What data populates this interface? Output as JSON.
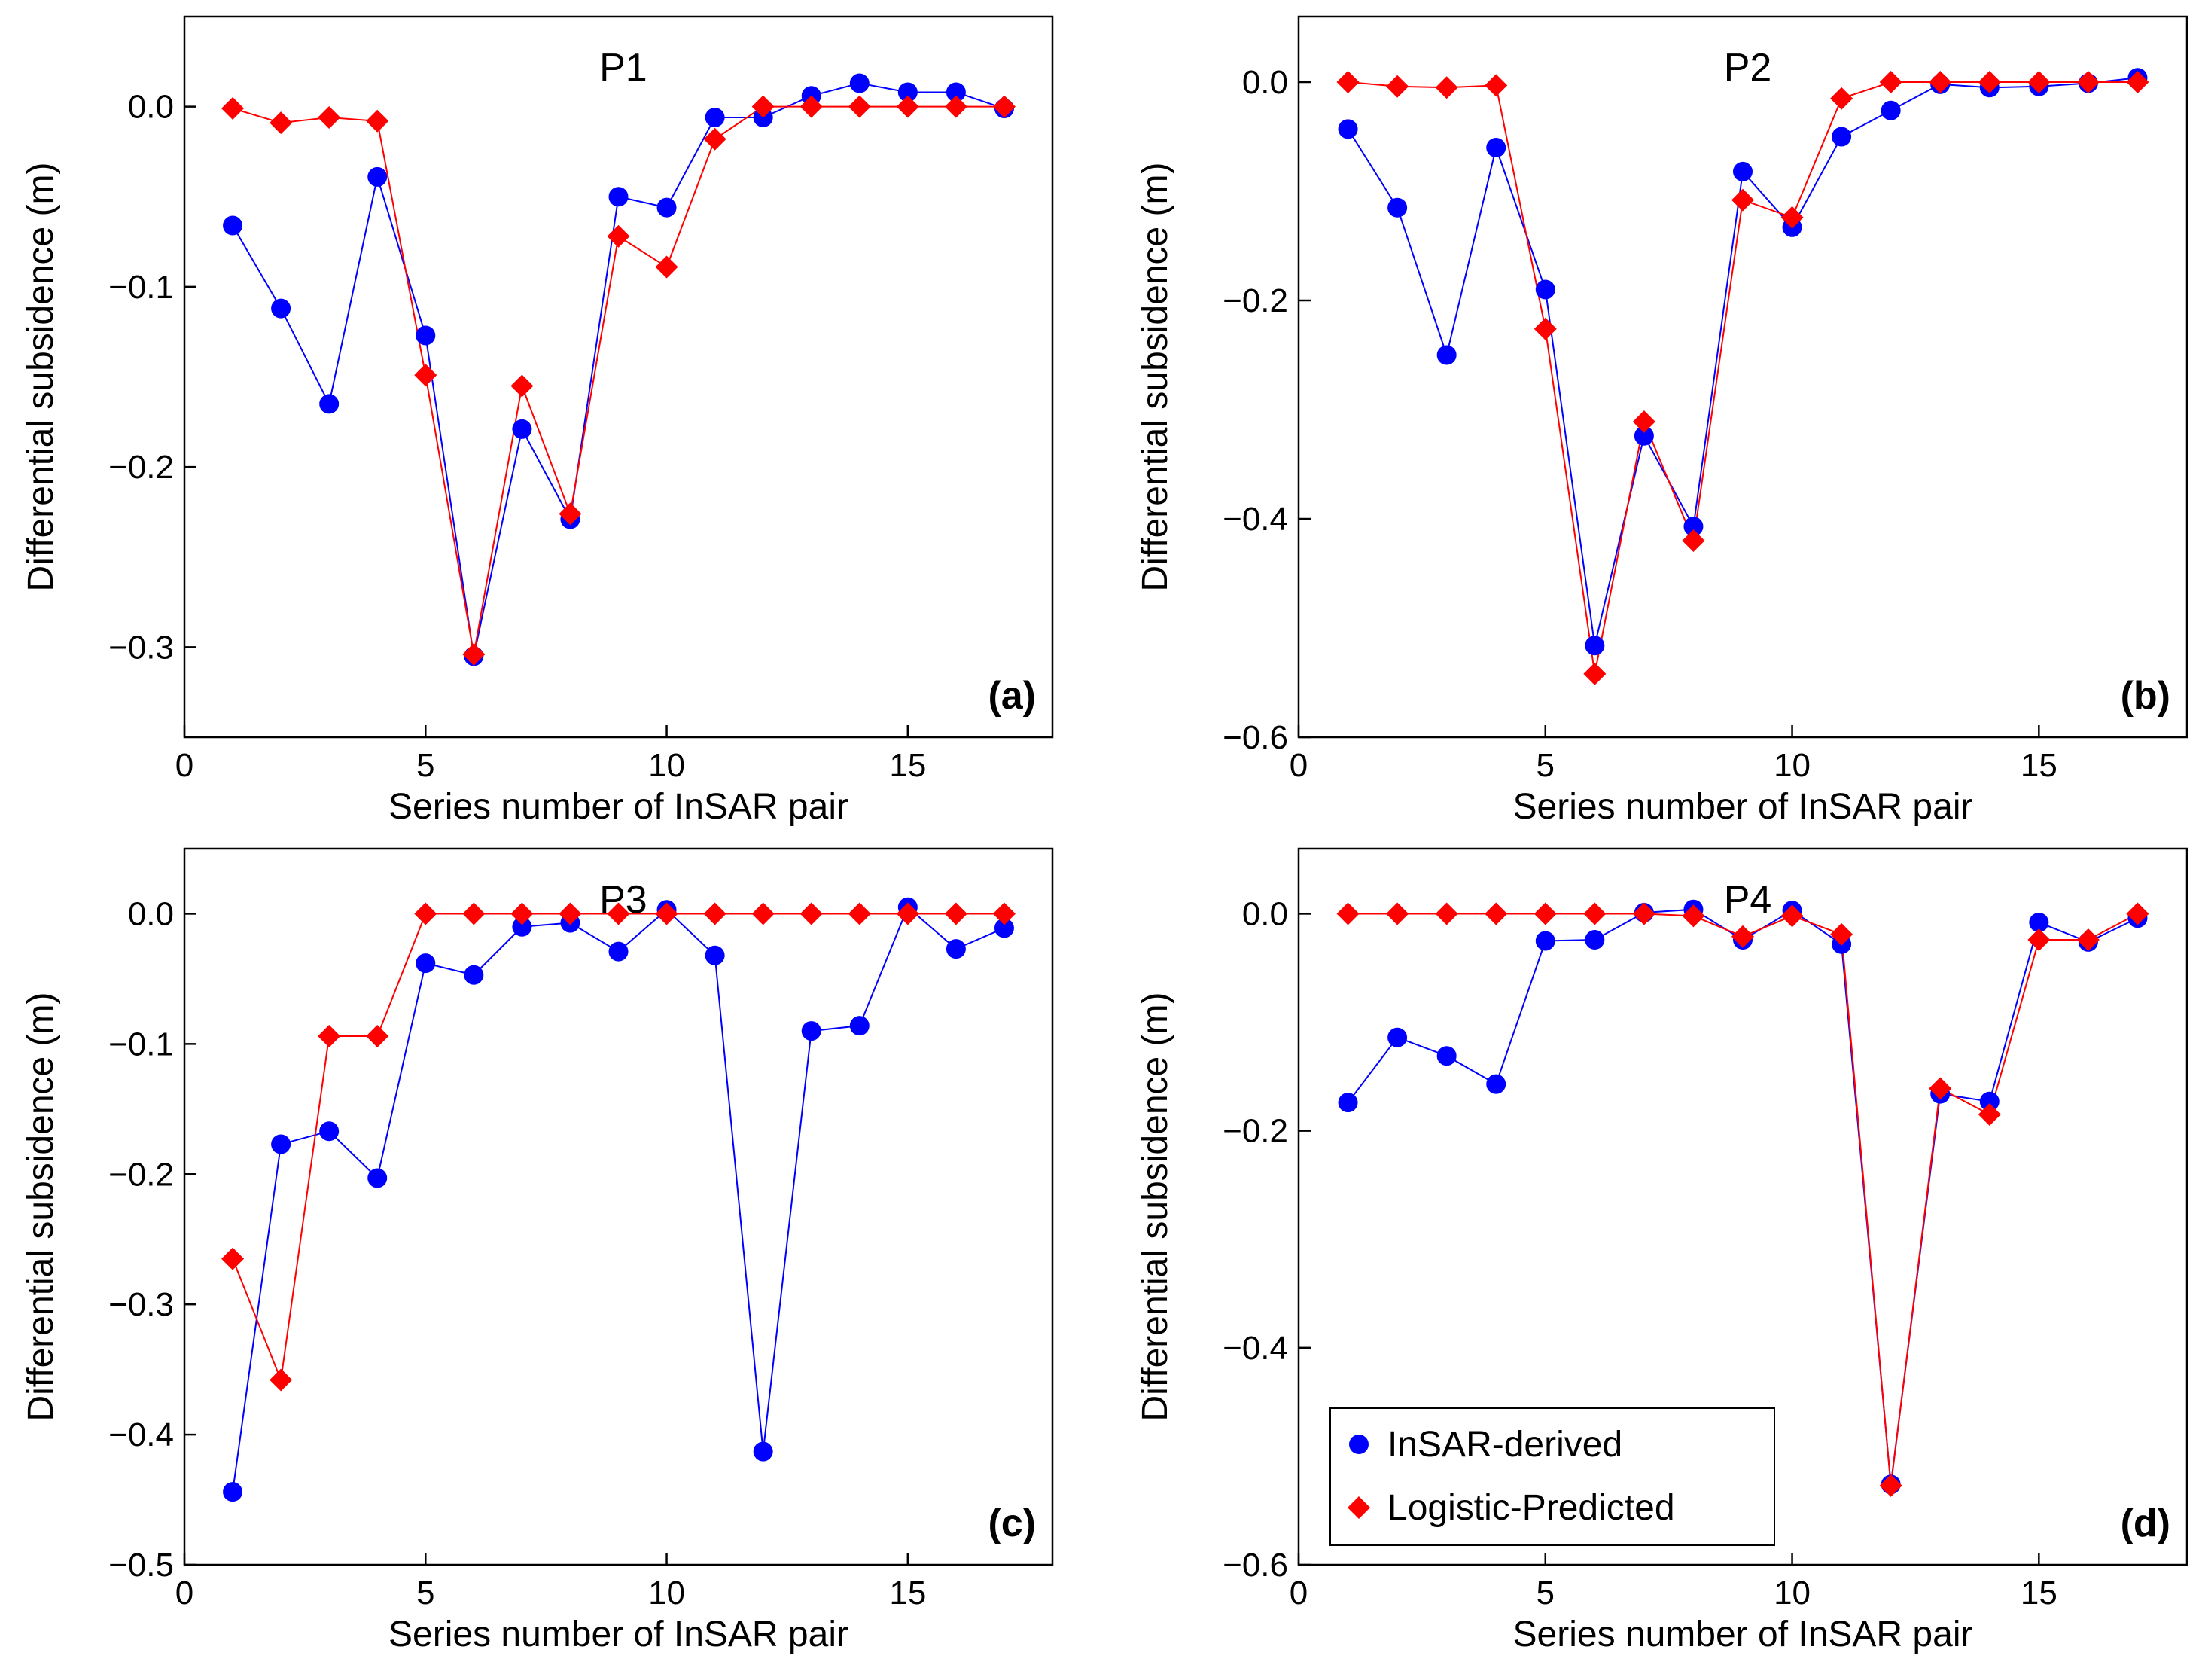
{
  "chart_data": [
    {
      "type": "line",
      "title": "P1",
      "panel_label": "(a)",
      "xlabel": "Series number of InSAR pair",
      "ylabel": "Differential subsidence (m)",
      "xlim": [
        0,
        18
      ],
      "ylim": [
        -0.35,
        0.05
      ],
      "xticks": [
        0,
        5,
        10,
        15
      ],
      "yticks": [
        -0.3,
        -0.2,
        -0.1,
        0.0
      ],
      "x": [
        1,
        2,
        3,
        4,
        5,
        6,
        7,
        8,
        9,
        10,
        11,
        12,
        13,
        14,
        15,
        16,
        17
      ],
      "series": [
        {
          "name": "InSAR-derived",
          "color": "#0000ff",
          "marker": "circle",
          "values": [
            -0.066,
            -0.112,
            -0.165,
            -0.039,
            -0.127,
            -0.305,
            -0.179,
            -0.229,
            -0.05,
            -0.056,
            -0.006,
            -0.006,
            0.006,
            0.013,
            0.008,
            0.008,
            -0.001
          ]
        },
        {
          "name": "Logistic-Predicted",
          "color": "#ff0000",
          "marker": "diamond",
          "values": [
            -0.001,
            -0.009,
            -0.006,
            -0.008,
            -0.149,
            -0.304,
            -0.155,
            -0.226,
            -0.072,
            -0.089,
            -0.018,
            0.0,
            0.0,
            0.0,
            0.0,
            0.0,
            0.0
          ]
        }
      ]
    },
    {
      "type": "line",
      "title": "P2",
      "panel_label": "(b)",
      "xlabel": "Series number of InSAR pair",
      "ylabel": "Differential subsidence (m)",
      "xlim": [
        0,
        18
      ],
      "ylim": [
        -0.6,
        0.06
      ],
      "xticks": [
        0,
        5,
        10,
        15
      ],
      "yticks": [
        -0.6,
        -0.4,
        -0.2,
        0.0
      ],
      "x": [
        1,
        2,
        3,
        4,
        5,
        6,
        7,
        8,
        9,
        10,
        11,
        12,
        13,
        14,
        15,
        16,
        17
      ],
      "series": [
        {
          "name": "InSAR-derived",
          "color": "#0000ff",
          "marker": "circle",
          "values": [
            -0.043,
            -0.115,
            -0.25,
            -0.06,
            -0.19,
            -0.516,
            -0.324,
            -0.407,
            -0.082,
            -0.133,
            -0.05,
            -0.026,
            -0.002,
            -0.005,
            -0.004,
            -0.001,
            0.004
          ]
        },
        {
          "name": "Logistic-Predicted",
          "color": "#ff0000",
          "marker": "diamond",
          "values": [
            0.0,
            -0.004,
            -0.005,
            -0.003,
            -0.226,
            -0.542,
            -0.311,
            -0.42,
            -0.108,
            -0.124,
            -0.015,
            0.0,
            0.0,
            0.0,
            0.0,
            0.0,
            0.0
          ]
        }
      ]
    },
    {
      "type": "line",
      "title": "P3",
      "panel_label": "(c)",
      "xlabel": "Series number of InSAR pair",
      "ylabel": "Differential subsidence (m)",
      "xlim": [
        0,
        18
      ],
      "ylim": [
        -0.5,
        0.05
      ],
      "xticks": [
        0,
        5,
        10,
        15
      ],
      "yticks": [
        -0.5,
        -0.4,
        -0.3,
        -0.2,
        -0.1,
        0.0
      ],
      "x": [
        1,
        2,
        3,
        4,
        5,
        6,
        7,
        8,
        9,
        10,
        11,
        12,
        13,
        14,
        15,
        16,
        17
      ],
      "series": [
        {
          "name": "InSAR-derived",
          "color": "#0000ff",
          "marker": "circle",
          "values": [
            -0.444,
            -0.177,
            -0.167,
            -0.203,
            -0.038,
            -0.047,
            -0.01,
            -0.007,
            -0.029,
            0.003,
            -0.032,
            -0.413,
            -0.09,
            -0.086,
            0.005,
            -0.027,
            -0.011
          ]
        },
        {
          "name": "Logistic-Predicted",
          "color": "#ff0000",
          "marker": "diamond",
          "values": [
            -0.265,
            -0.358,
            -0.094,
            -0.094,
            0.0,
            0.0,
            0.0,
            0.0,
            0.0,
            0.0,
            0.0,
            0.0,
            0.0,
            0.0,
            0.0,
            0.0,
            0.0
          ]
        }
      ]
    },
    {
      "type": "line",
      "title": "P4",
      "panel_label": "(d)",
      "xlabel": "Series number of InSAR pair",
      "ylabel": "Differential subsidence (m)",
      "xlim": [
        0,
        18
      ],
      "ylim": [
        -0.6,
        0.06
      ],
      "xticks": [
        0,
        5,
        10,
        15
      ],
      "yticks": [
        -0.6,
        -0.4,
        -0.2,
        0.0
      ],
      "legend": "bottom-left",
      "x": [
        1,
        2,
        3,
        4,
        5,
        6,
        7,
        8,
        9,
        10,
        11,
        12,
        13,
        14,
        15,
        16,
        17
      ],
      "series": [
        {
          "name": "InSAR-derived",
          "color": "#0000ff",
          "marker": "circle",
          "values": [
            -0.174,
            -0.114,
            -0.131,
            -0.157,
            -0.025,
            -0.024,
            0.001,
            0.004,
            -0.024,
            0.003,
            -0.028,
            -0.526,
            -0.166,
            -0.173,
            -0.008,
            -0.026,
            -0.004
          ]
        },
        {
          "name": "Logistic-Predicted",
          "color": "#ff0000",
          "marker": "diamond",
          "values": [
            0.0,
            0.0,
            0.0,
            0.0,
            0.0,
            0.0,
            0.0,
            -0.002,
            -0.021,
            -0.002,
            -0.019,
            -0.527,
            -0.161,
            -0.185,
            -0.024,
            -0.024,
            0.0
          ]
        }
      ]
    }
  ]
}
